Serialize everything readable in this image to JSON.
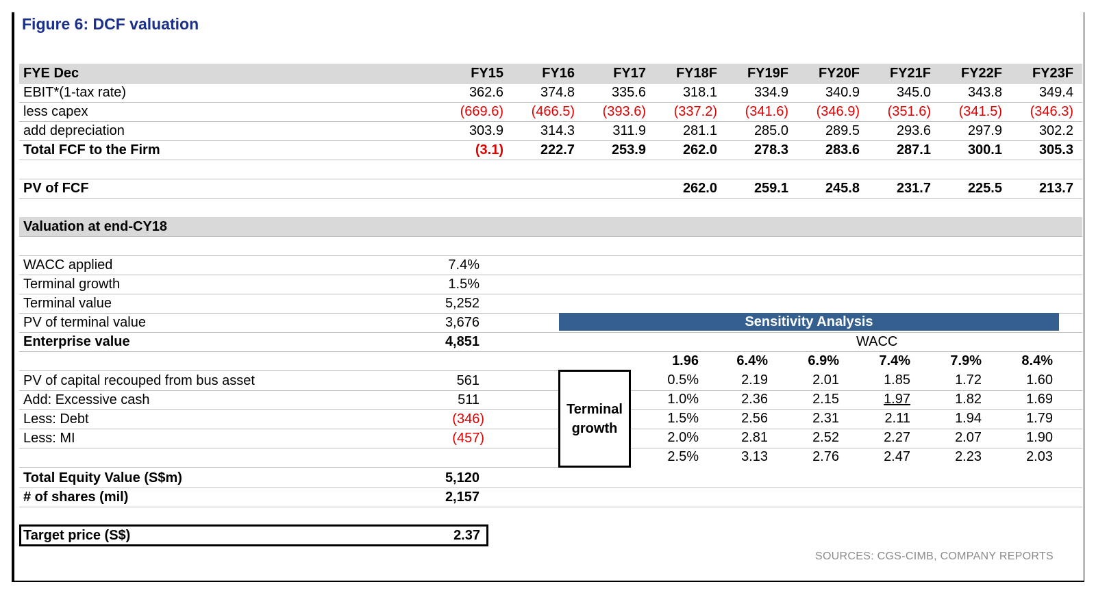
{
  "title": "Figure 6: DCF valuation",
  "header": {
    "label": "FYE Dec",
    "years": [
      "FY15",
      "FY16",
      "FY17",
      "FY18F",
      "FY19F",
      "FY20F",
      "FY21F",
      "FY22F",
      "FY23F"
    ]
  },
  "fcf_rows": [
    {
      "label": "EBIT*(1-tax rate)",
      "bold": false,
      "values": [
        "362.6",
        "374.8",
        "335.6",
        "318.1",
        "334.9",
        "340.9",
        "345.0",
        "343.8",
        "349.4"
      ],
      "neg": [
        false,
        false,
        false,
        false,
        false,
        false,
        false,
        false,
        false
      ]
    },
    {
      "label": "less capex",
      "bold": false,
      "values": [
        "(669.6)",
        "(466.5)",
        "(393.6)",
        "(337.2)",
        "(341.6)",
        "(346.9)",
        "(351.6)",
        "(341.5)",
        "(346.3)"
      ],
      "neg": [
        true,
        true,
        true,
        true,
        true,
        true,
        true,
        true,
        true
      ]
    },
    {
      "label": "add depreciation",
      "bold": false,
      "values": [
        "303.9",
        "314.3",
        "311.9",
        "281.1",
        "285.0",
        "289.5",
        "293.6",
        "297.9",
        "302.2"
      ],
      "neg": [
        false,
        false,
        false,
        false,
        false,
        false,
        false,
        false,
        false
      ]
    },
    {
      "label": "Total FCF to the Firm",
      "bold": true,
      "values": [
        "(3.1)",
        "222.7",
        "253.9",
        "262.0",
        "278.3",
        "283.6",
        "287.1",
        "300.1",
        "305.3"
      ],
      "neg": [
        true,
        false,
        false,
        false,
        false,
        false,
        false,
        false,
        false
      ]
    }
  ],
  "pv_fcf": {
    "label": "PV of FCF",
    "values": [
      "",
      "",
      "",
      "262.0",
      "259.1",
      "245.8",
      "231.7",
      "225.5",
      "213.7"
    ]
  },
  "valuation_heading": "Valuation at end-CY18",
  "valuation_rows": [
    {
      "label": "WACC applied",
      "value": "7.4%"
    },
    {
      "label": "Terminal growth",
      "value": "1.5%"
    },
    {
      "label": "Terminal value",
      "value": "5,252"
    },
    {
      "label": "PV of terminal value",
      "value": "3,676"
    },
    {
      "label": "Enterprise value",
      "value": "4,851",
      "bold": true
    },
    {
      "label": "PV of capital recouped from bus asset",
      "value": "561"
    },
    {
      "label": "Add: Excessive cash",
      "value": "511"
    },
    {
      "label": "Less: Debt",
      "value": "(346)",
      "neg": true
    },
    {
      "label": "Less: MI",
      "value": "(457)",
      "neg": true
    },
    {
      "label": "Total Equity Value (S$m)",
      "value": "5,120",
      "bold": true
    },
    {
      "label": "# of shares (mil)",
      "value": "2,157",
      "bold": true
    }
  ],
  "target_price": {
    "label": "Target price (S$)",
    "value": "2.37"
  },
  "sensitivity": {
    "title": "Sensitivity Analysis",
    "wacc_label": "WACC",
    "growth_label_line1": "Terminal",
    "growth_label_line2": "growth",
    "corner": "1.96",
    "wacc_values": [
      "6.4%",
      "6.9%",
      "7.4%",
      "7.9%",
      "8.4%"
    ],
    "rows": [
      {
        "growth": "0.5%",
        "values": [
          "2.19",
          "2.01",
          "1.85",
          "1.72",
          "1.60"
        ]
      },
      {
        "growth": "1.0%",
        "values": [
          "2.36",
          "2.15",
          "1.97",
          "1.82",
          "1.69"
        ]
      },
      {
        "growth": "1.5%",
        "values": [
          "2.56",
          "2.31",
          "2.11",
          "1.94",
          "1.79"
        ]
      },
      {
        "growth": "2.0%",
        "values": [
          "2.81",
          "2.52",
          "2.27",
          "2.07",
          "1.90"
        ]
      },
      {
        "growth": "2.5%",
        "values": [
          "3.13",
          "2.76",
          "2.47",
          "2.23",
          "2.03"
        ]
      }
    ]
  },
  "sources": "SOURCES: CGS-CIMB, COMPANY REPORTS"
}
